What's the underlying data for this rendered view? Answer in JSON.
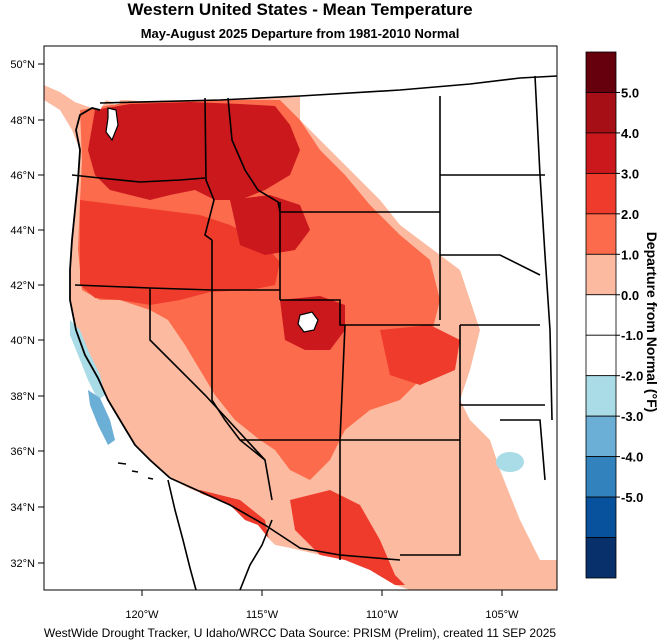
{
  "title": "Western United States - Mean Temperature",
  "subtitle": "May-August 2025  Departure from 1981-2010 Normal",
  "footer": "WestWide Drought Tracker, U Idaho/WRCC Data Source: PRISM (Prelim), created 11 SEP 2025",
  "latitude_labels": [
    "50°N",
    "48°N",
    "46°N",
    "44°N",
    "42°N",
    "40°N",
    "38°N",
    "36°N",
    "34°N",
    "32°N"
  ],
  "longitude_labels": [
    "120°W",
    "115°W",
    "110°W",
    "105°W"
  ],
  "colorbar": {
    "title": "Departure from Normal (°F)",
    "labels": [
      "5.0",
      "4.0",
      "3.0",
      "2.0",
      "1.0",
      "0.0",
      "-1.0",
      "-2.0",
      "-3.0",
      "-4.0",
      "-5.0"
    ],
    "colors": [
      "#67000d",
      "#a50f15",
      "#cb181d",
      "#ef3b2c",
      "#fc6b4b",
      "#fcbba1",
      "#ffffff",
      "#ffffff",
      "#a9dce6",
      "#6baed6",
      "#3182bd",
      "#08519c",
      "#08306b"
    ]
  },
  "map_colors": {
    "ocean": "#ffffff",
    "strong_warm": "#cb181d",
    "warm": "#ef3b2c",
    "moderate_warm": "#fc6b4b",
    "light_warm": "#fcbba1",
    "cool": "#a9dce6",
    "cooler": "#6baed6"
  }
}
